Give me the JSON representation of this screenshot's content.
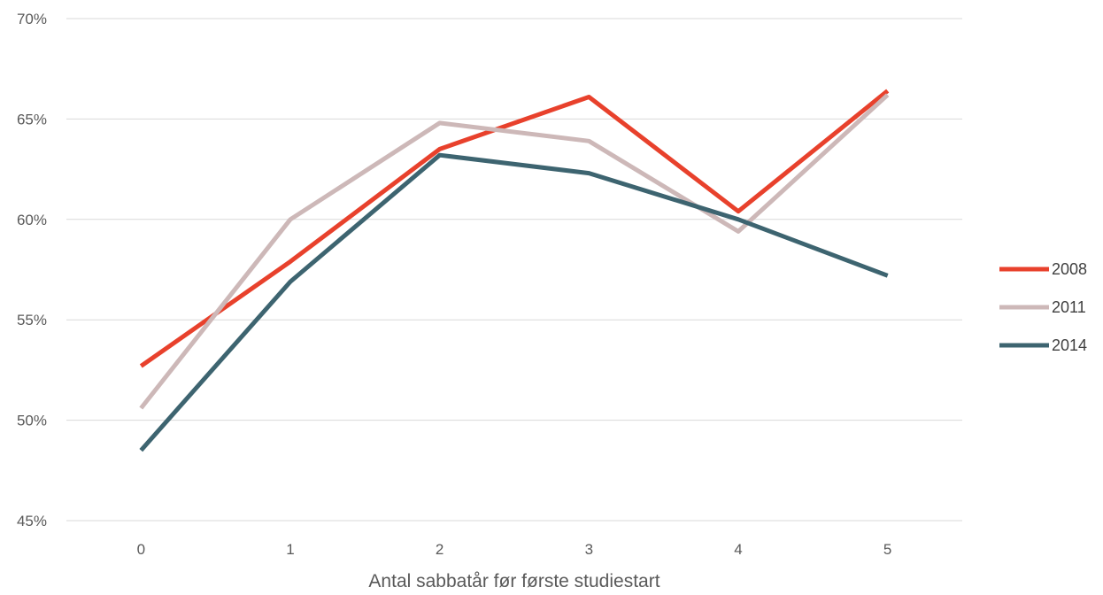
{
  "chart_data": {
    "type": "line",
    "title": "",
    "xlabel": "Antal sabbatår før første studiestart",
    "ylabel": "",
    "categories": [
      "0",
      "1",
      "2",
      "3",
      "4",
      "5"
    ],
    "ylim": [
      0.45,
      0.7
    ],
    "y_ticks": [
      0.45,
      0.5,
      0.55,
      0.6,
      0.65,
      0.7
    ],
    "y_tick_labels": [
      "45%",
      "50%",
      "55%",
      "60%",
      "65%",
      "70%"
    ],
    "y_format": "percent",
    "grid": true,
    "legend_position": "right",
    "series": [
      {
        "name": "2008",
        "color": "#e8412c",
        "values": [
          0.527,
          0.579,
          0.635,
          0.661,
          0.604,
          0.664
        ]
      },
      {
        "name": "2011",
        "color": "#cdb8b8",
        "values": [
          0.506,
          0.6,
          0.648,
          0.639,
          0.594,
          0.662
        ]
      },
      {
        "name": "2014",
        "color": "#3d6470",
        "values": [
          0.485,
          0.569,
          0.632,
          0.623,
          0.6,
          0.572
        ]
      }
    ]
  }
}
